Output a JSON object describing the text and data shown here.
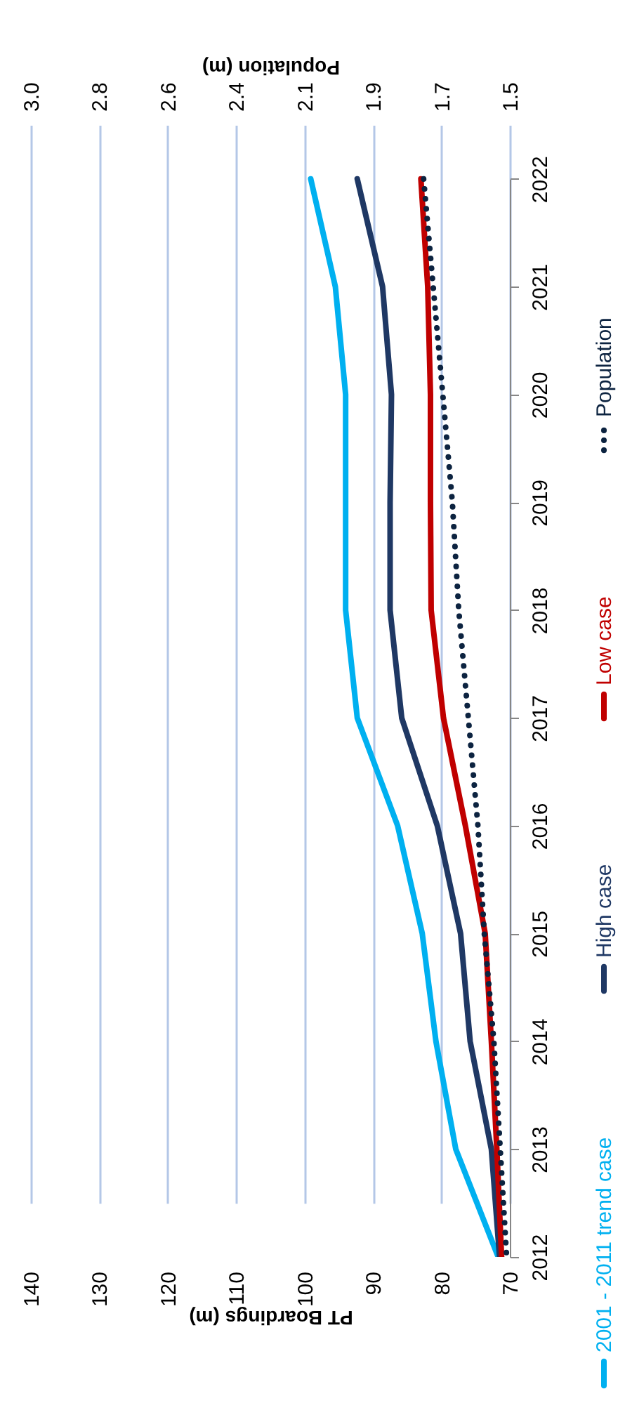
{
  "chart_data": {
    "type": "line",
    "orientation": "horizontal",
    "categories": [
      "2022",
      "2021",
      "2020",
      "2019",
      "2018",
      "2017",
      "2016",
      "2015",
      "2014",
      "2013",
      "2012"
    ],
    "xlabel": "PT Boardings (m)",
    "x2label": "Population (m)",
    "xlim": [
      140,
      70
    ],
    "xticks": [
      70,
      80,
      90,
      100,
      110,
      120,
      130,
      140
    ],
    "x2lim": [
      3.0,
      1.5
    ],
    "x2ticks": [
      1.5,
      {
        "value": 1.714,
        "label": "1.7"
      },
      {
        "value": 1.929,
        "label": "1.9"
      },
      {
        "value": 2.143,
        "label": "2.1"
      },
      {
        "value": 2.357,
        "label": "2.4"
      },
      {
        "value": 2.571,
        "label": "2.6"
      },
      {
        "value": 2.786,
        "label": "2.8"
      },
      {
        "value": 3,
        "label": "3.0"
      }
    ],
    "grid": "x",
    "legend": "right",
    "series": [
      {
        "name": "2001 - 2011 trend case",
        "color": "#00b0f0",
        "line_style": "solid",
        "values": [
          99.1,
          95.5,
          94.0,
          94.0,
          94.0,
          92.3,
          86.4,
          82.8,
          80.8,
          77.9,
          71.7
        ]
      },
      {
        "name": "High case",
        "color": "#1f3864",
        "line_style": "solid",
        "values": [
          92.3,
          88.6,
          87.3,
          87.5,
          87.5,
          85.8,
          80.6,
          77.2,
          75.8,
          72.7,
          71.5
        ]
      },
      {
        "name": "Low case",
        "color": "#c00000",
        "line_style": "solid",
        "values": [
          83.0,
          82.0,
          81.6,
          81.6,
          81.5,
          79.7,
          76.5,
          73.6,
          72.7,
          71.9,
          71.2
        ]
      },
      {
        "name": "Population",
        "color": "#0c2340",
        "line_style": "dotted",
        "axis": "x2",
        "values": [
          1.77,
          1.74,
          1.71,
          1.68,
          1.66,
          1.63,
          1.6,
          1.58,
          1.55,
          1.53,
          1.51
        ]
      }
    ]
  }
}
